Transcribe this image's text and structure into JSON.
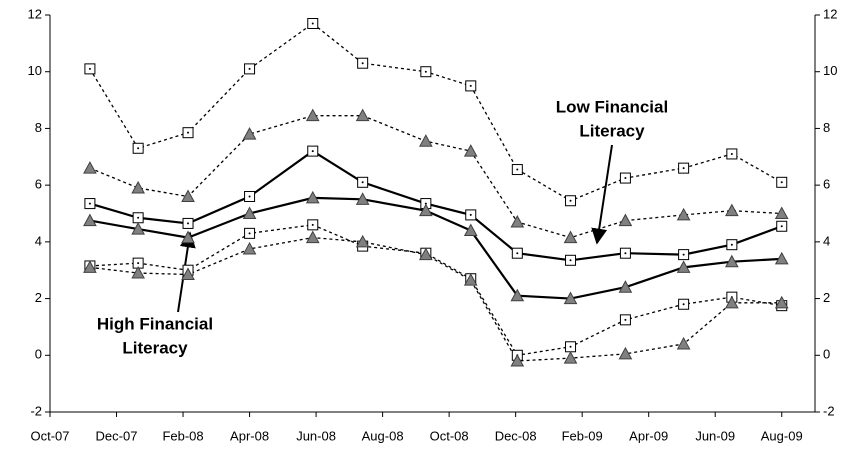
{
  "chart_data": {
    "type": "line",
    "x": [
      1.2,
      2.65,
      4.15,
      6.0,
      7.9,
      9.4,
      11.3,
      12.65,
      14.05,
      15.65,
      17.3,
      19.05,
      20.5,
      22.0
    ],
    "xlim": [
      0,
      23
    ],
    "xticks": [
      {
        "value": 0,
        "label": "Oct-07"
      },
      {
        "value": 2,
        "label": "Dec-07"
      },
      {
        "value": 4,
        "label": "Feb-08"
      },
      {
        "value": 6,
        "label": "Apr-08"
      },
      {
        "value": 8,
        "label": "Jun-08"
      },
      {
        "value": 10,
        "label": "Aug-08"
      },
      {
        "value": 12,
        "label": "Oct-08"
      },
      {
        "value": 14,
        "label": "Dec-08"
      },
      {
        "value": 16,
        "label": "Feb-09"
      },
      {
        "value": 18,
        "label": "Apr-09"
      },
      {
        "value": 20,
        "label": "Jun-09"
      },
      {
        "value": 22,
        "label": "Aug-09"
      }
    ],
    "ylim": [
      -2,
      12
    ],
    "yticks": [
      -2,
      0,
      2,
      4,
      6,
      8,
      10,
      12
    ],
    "y2lim": [
      -2,
      12
    ],
    "y2ticks": [
      -2,
      0,
      2,
      4,
      6,
      8,
      10,
      12
    ],
    "grid": false,
    "series": [
      {
        "color": "#000000",
        "marker": "square",
        "line_style": "dotted",
        "values": [
          10.1,
          7.3,
          7.85,
          10.1,
          11.7,
          10.3,
          10.0,
          9.5,
          6.55,
          5.45,
          6.25,
          6.6,
          7.1,
          6.1
        ]
      },
      {
        "color": "#000000",
        "marker": "square",
        "line_style": "solid",
        "values": [
          5.35,
          4.85,
          4.65,
          5.6,
          7.2,
          6.1,
          5.35,
          4.95,
          3.6,
          3.35,
          3.6,
          3.55,
          3.9,
          4.55
        ]
      },
      {
        "color": "#000000",
        "marker": "square",
        "line_style": "dotted",
        "values": [
          3.15,
          3.25,
          3.0,
          4.3,
          4.6,
          3.85,
          3.6,
          2.7,
          0.0,
          0.3,
          1.25,
          1.8,
          2.05,
          1.75
        ]
      },
      {
        "color": "#000000",
        "marker": "triangle",
        "line_style": "dotted",
        "values": [
          6.6,
          5.9,
          5.6,
          7.8,
          8.45,
          8.45,
          7.55,
          7.2,
          4.7,
          4.15,
          4.75,
          4.95,
          5.1,
          5.0
        ]
      },
      {
        "color": "#000000",
        "marker": "triangle",
        "line_style": "solid",
        "values": [
          4.75,
          4.45,
          4.15,
          5.0,
          5.55,
          5.5,
          5.1,
          4.4,
          2.1,
          2.0,
          2.4,
          3.1,
          3.3,
          3.4
        ]
      },
      {
        "color": "#000000",
        "marker": "triangle",
        "line_style": "dotted",
        "values": [
          3.1,
          2.9,
          2.85,
          3.75,
          4.15,
          4.0,
          3.55,
          2.65,
          -0.2,
          -0.1,
          0.05,
          0.4,
          1.85,
          1.85
        ]
      }
    ],
    "annotations": [
      {
        "lines": [
          "Low Financial",
          "Literacy"
        ]
      },
      {
        "lines": [
          "High Financial",
          "Literacy"
        ]
      }
    ]
  }
}
